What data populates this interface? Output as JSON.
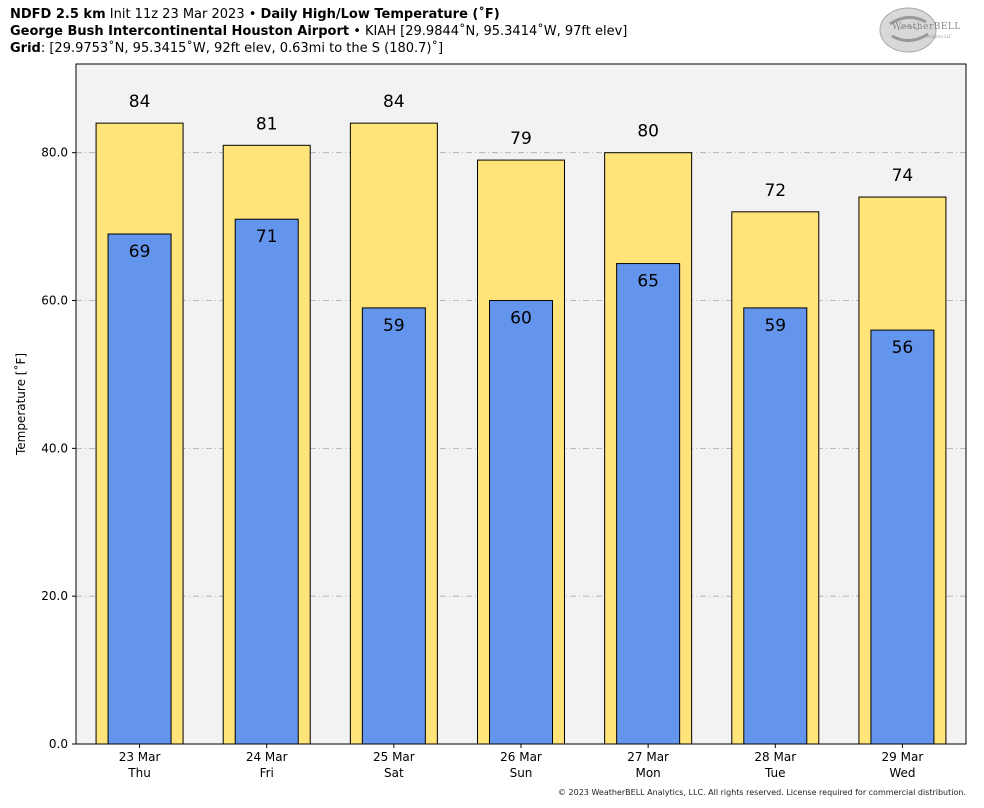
{
  "header": {
    "line1_bold_a": "NDFD 2.5 km",
    "line1_plain": " Init 11z 23 Mar 2023 • ",
    "line1_bold_b": "Daily High/Low Temperature (˚F)",
    "line2_bold": "George Bush Intercontinental Houston Airport",
    "line2_plain": " • KIAH [29.9844˚N, 95.3414˚W, 97ft elev]",
    "line3_bold": "Grid",
    "line3_plain": ": [29.9753˚N, 95.3415˚W, 92ft elev, 0.63mi to the S (180.7)˚]"
  },
  "logo": {
    "text": "WeatherBELL",
    "sub": "Analytics LLC"
  },
  "footer": "© 2023 WeatherBELL Analytics, LLC. All rights reserved. License required for commercial distribution.",
  "colors": {
    "high": "#ffe47a",
    "low": "#6495ed",
    "plot_bg": "#f3f2f3"
  },
  "chart_data": {
    "type": "bar",
    "ylabel": "Temperature [˚F]",
    "xlabel": "",
    "ylim": [
      0,
      92
    ],
    "yticks": [
      "0.0",
      "20.0",
      "40.0",
      "60.0",
      "80.0"
    ],
    "grid": true,
    "categories": [
      {
        "date": "23 Mar",
        "day": "Thu"
      },
      {
        "date": "24 Mar",
        "day": "Fri"
      },
      {
        "date": "25 Mar",
        "day": "Sat"
      },
      {
        "date": "26 Mar",
        "day": "Sun"
      },
      {
        "date": "27 Mar",
        "day": "Mon"
      },
      {
        "date": "28 Mar",
        "day": "Tue"
      },
      {
        "date": "29 Mar",
        "day": "Wed"
      }
    ],
    "series": [
      {
        "role": "high",
        "values": [
          84,
          81,
          84,
          79,
          80,
          72,
          74
        ]
      },
      {
        "role": "low",
        "values": [
          69,
          71,
          59,
          60,
          65,
          59,
          56
        ]
      }
    ]
  }
}
